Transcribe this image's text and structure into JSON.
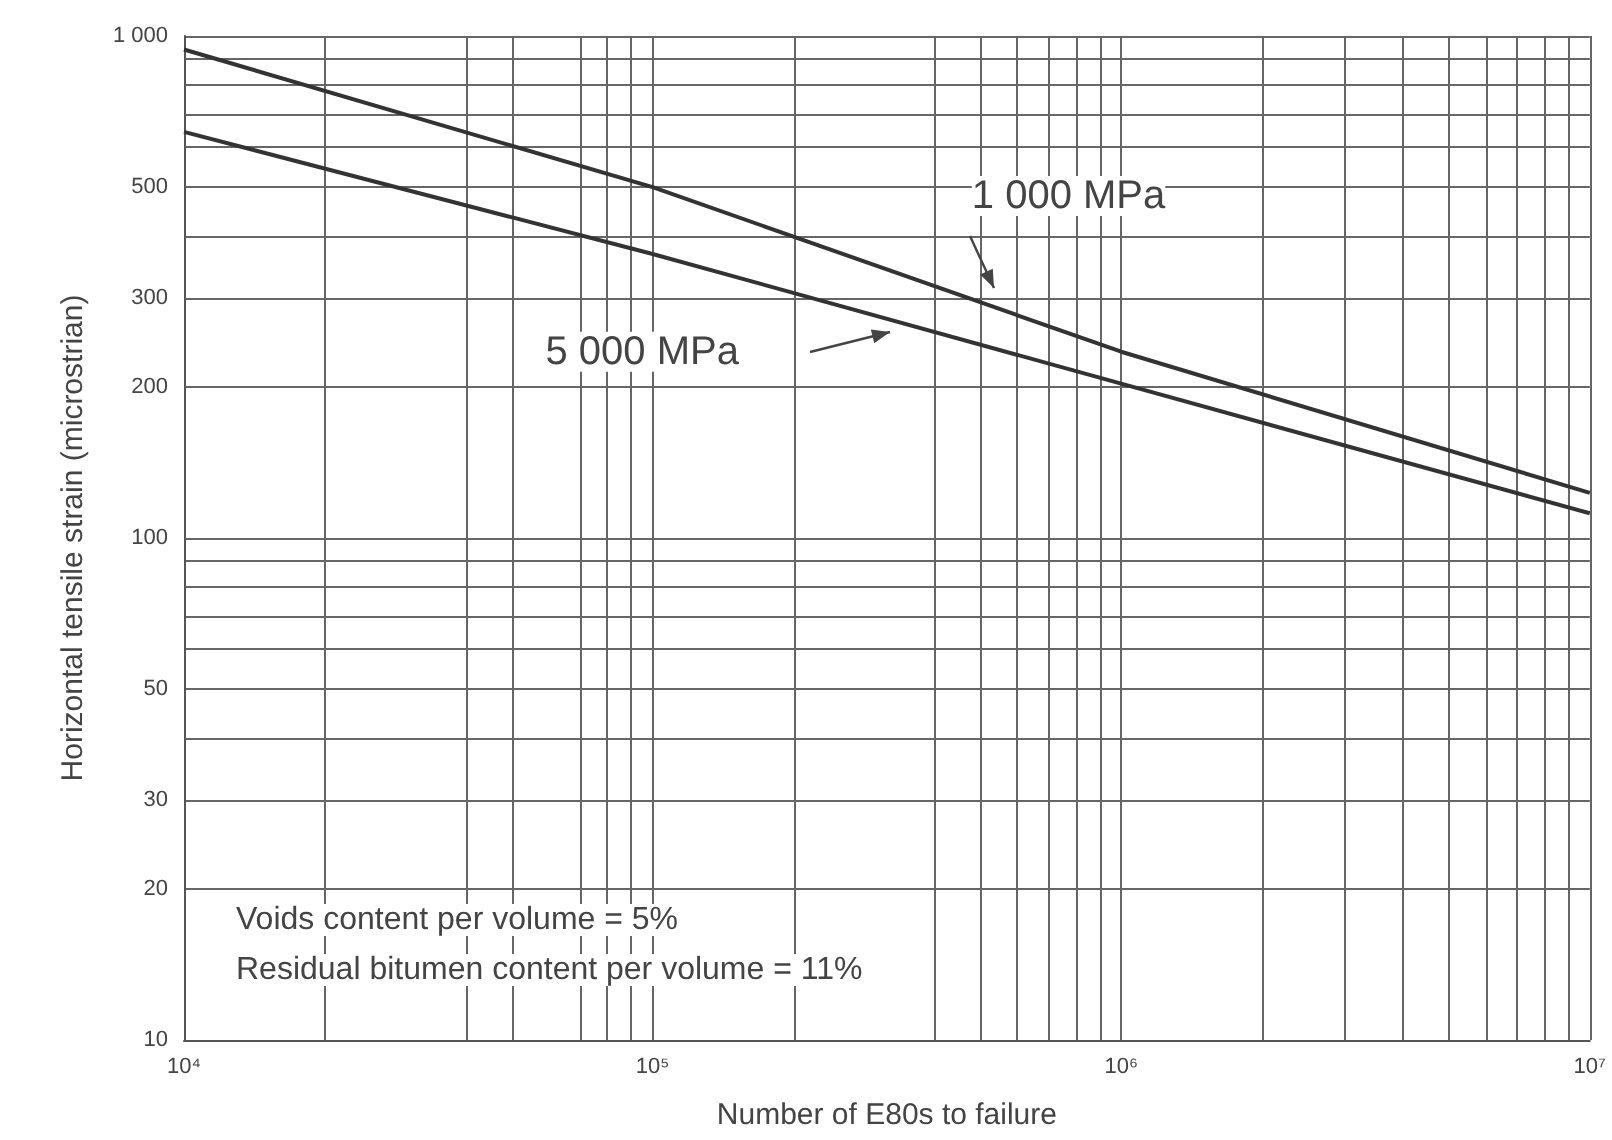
{
  "chart_data": {
    "type": "line",
    "xlabel": "Number of E80s to failure",
    "ylabel": "Horizontal tensile strain (microstrian)",
    "log": "xy",
    "grid": true,
    "legend": false,
    "marker": "none",
    "line_style": "solid",
    "x": [
      10000,
      100000,
      1000000,
      10000000
    ],
    "series": [
      {
        "name": "1 000 MPa",
        "color": "#333333",
        "values": [
          940,
          500,
          235,
          123
        ]
      },
      {
        "name": "5 000 MPa",
        "color": "#333333",
        "values": [
          644,
          368,
          203,
          112
        ]
      }
    ],
    "xlim": [
      10000,
      10000000
    ],
    "xticks": [
      {
        "value": 10000,
        "label": "10⁴"
      },
      {
        "value": 20000,
        "label": null
      },
      {
        "value": 40000,
        "label": null
      },
      {
        "value": 50000,
        "label": null
      },
      {
        "value": 70000,
        "label": null
      },
      {
        "value": 80000,
        "label": null
      },
      {
        "value": 90000,
        "label": null
      },
      {
        "value": 100000,
        "label": "10⁵"
      },
      {
        "value": 200000,
        "label": null
      },
      {
        "value": 400000,
        "label": null
      },
      {
        "value": 500000,
        "label": null
      },
      {
        "value": 600000,
        "label": null
      },
      {
        "value": 700000,
        "label": null
      },
      {
        "value": 800000,
        "label": null
      },
      {
        "value": 900000,
        "label": null
      },
      {
        "value": 1000000,
        "label": "10⁶"
      },
      {
        "value": 2000000,
        "label": null
      },
      {
        "value": 3000000,
        "label": null
      },
      {
        "value": 4000000,
        "label": null
      },
      {
        "value": 5000000,
        "label": null
      },
      {
        "value": 6000000,
        "label": null
      },
      {
        "value": 7000000,
        "label": null
      },
      {
        "value": 8000000,
        "label": null
      },
      {
        "value": 9000000,
        "label": null
      },
      {
        "value": 10000000,
        "label": "10⁷"
      }
    ],
    "ylim": [
      10,
      1000
    ],
    "yticks": [
      10,
      20,
      30,
      {
        "value": 40,
        "label": null
      },
      50,
      {
        "value": 60,
        "label": null
      },
      {
        "value": 70,
        "label": null
      },
      {
        "value": 80,
        "label": null
      },
      {
        "value": 90,
        "label": null
      },
      100,
      200,
      300,
      {
        "value": 400,
        "label": null
      },
      500,
      {
        "value": 600,
        "label": null
      },
      {
        "value": 700,
        "label": null
      },
      {
        "value": 800,
        "label": null
      },
      {
        "value": 900,
        "label": null
      },
      {
        "value": 1000,
        "label": "1 000"
      }
    ],
    "annotations": [
      "Voids content per volume = 5%",
      "Residual bitumen content per volume = 11%"
    ]
  }
}
